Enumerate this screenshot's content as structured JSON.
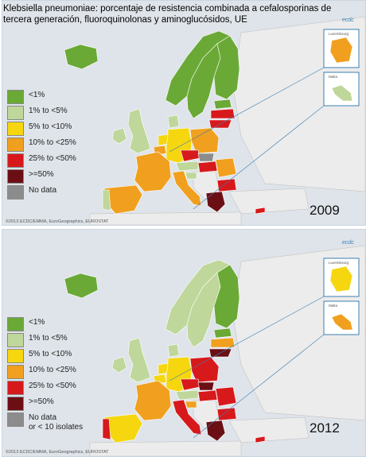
{
  "title": "Klebsiella pneumoniae: porcentaje de resistencia combinada a cefalosporinas de tercera generación, fluoroquinolonas y aminoglucósidos, UE",
  "colors": {
    "sea": "#dfe4ea",
    "lt1": "#6aa936",
    "1to5": "#bfd79a",
    "5to10": "#f5d60f",
    "10to25": "#f0a01e",
    "25to50": "#d7191c",
    "ge50": "#6b0f15",
    "nodata": "#8c8c8c",
    "nonEU": "#ececec"
  },
  "panels": [
    {
      "year": "2009",
      "credit": "©2013 ECDC/EMMA, EuroGeographics, EUROSTAT",
      "legend": [
        {
          "label": "<1%",
          "color": "#6aa936"
        },
        {
          "label": "1% to <5%",
          "color": "#bfd79a"
        },
        {
          "label": "5% to <10%",
          "color": "#f5d60f"
        },
        {
          "label": "10% to <25%",
          "color": "#f0a01e"
        },
        {
          "label": "25% to <50%",
          "color": "#d7191c"
        },
        {
          "label": ">=50%",
          "color": "#6b0f15"
        },
        {
          "label": "No data",
          "color": "#8c8c8c"
        }
      ],
      "insets": {
        "luxembourg": "Luxembourg",
        "malta": "Malta"
      },
      "countries": {
        "iceland": "#6aa936",
        "ireland": "#bfd79a",
        "uk": "#bfd79a",
        "norway": "#6aa936",
        "sweden": "#6aa936",
        "finland": "#6aa936",
        "denmark": "#bfd79a",
        "estonia": "#6aa936",
        "latvia": "#d7191c",
        "lithuania": "#d7191c",
        "poland": "#f0a01e",
        "germany": "#f5d60f",
        "netherlands": "#f5d60f",
        "belgium": "#f0a01e",
        "france": "#f0a01e",
        "spain": "#f0a01e",
        "portugal": "#bfd79a",
        "italy": "#f0a01e",
        "czech": "#d7191c",
        "slovakia": "#8c8c8c",
        "austria": "#bfd79a",
        "hungary": "#d7191c",
        "slovenia": "#bfd79a",
        "romania": "#f0a01e",
        "bulgaria": "#d7191c",
        "greece": "#6b0f15",
        "cyprus": "#d7191c",
        "luxembourg": "#f0a01e",
        "malta": "#bfd79a"
      }
    },
    {
      "year": "2012",
      "credit": "©2013 ECDC/EMMA, EuroGeographics, EUROSTAT",
      "legend": [
        {
          "label": "<1%",
          "color": "#6aa936"
        },
        {
          "label": "1% to <5%",
          "color": "#bfd79a"
        },
        {
          "label": "5% to <10%",
          "color": "#f5d60f"
        },
        {
          "label": "10% to <25%",
          "color": "#f0a01e"
        },
        {
          "label": "25% to <50%",
          "color": "#d7191c"
        },
        {
          "label": ">=50%",
          "color": "#6b0f15"
        },
        {
          "label": "No data\nor < 10 isolates",
          "color": "#8c8c8c"
        }
      ],
      "insets": {
        "luxembourg": "Luxembourg",
        "malta": "Malta"
      },
      "countries": {
        "iceland": "#6aa936",
        "ireland": "#bfd79a",
        "uk": "#bfd79a",
        "norway": "#bfd79a",
        "sweden": "#bfd79a",
        "finland": "#6aa936",
        "denmark": "#bfd79a",
        "estonia": "#6aa936",
        "latvia": "#f0a01e",
        "lithuania": "#6b0f15",
        "poland": "#d7191c",
        "germany": "#f5d60f",
        "netherlands": "#f5d60f",
        "belgium": "#f5d60f",
        "france": "#f0a01e",
        "spain": "#f5d60f",
        "portugal": "#d7191c",
        "italy": "#d7191c",
        "czech": "#d7191c",
        "slovakia": "#6b0f15",
        "austria": "#bfd79a",
        "hungary": "#d7191c",
        "slovenia": "#f0a01e",
        "romania": "#d7191c",
        "bulgaria": "#d7191c",
        "greece": "#6b0f15",
        "cyprus": "#d7191c",
        "luxembourg": "#f5d60f",
        "malta": "#f0a01e"
      }
    }
  ]
}
